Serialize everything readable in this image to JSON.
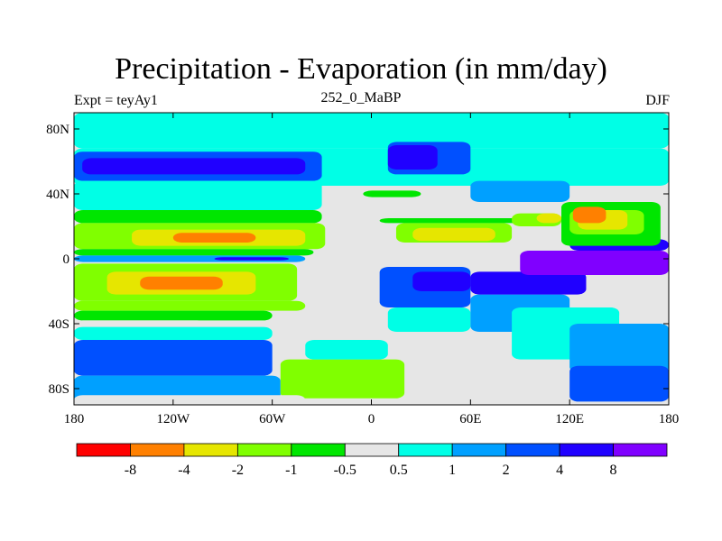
{
  "title": "Precipitation - Evaporation (in mm/day)",
  "left_label": "Expt = teyAy1",
  "center_label": "252_0_MaBP",
  "right_label": "DJF",
  "chart_data": {
    "type": "heatmap",
    "title": "Precipitation - Evaporation (in mm/day)",
    "xlabel": "",
    "ylabel": "",
    "xlim": [
      -180,
      180
    ],
    "ylim": [
      -90,
      90
    ],
    "x_ticks": [
      {
        "value": -180,
        "label": "180"
      },
      {
        "value": -120,
        "label": "120W"
      },
      {
        "value": -60,
        "label": "60W"
      },
      {
        "value": 0,
        "label": "0"
      },
      {
        "value": 60,
        "label": "60E"
      },
      {
        "value": 120,
        "label": "120E"
      },
      {
        "value": 180,
        "label": "180"
      }
    ],
    "y_ticks": [
      {
        "value": 80,
        "label": "80N"
      },
      {
        "value": 40,
        "label": "40N"
      },
      {
        "value": 0,
        "label": "0"
      },
      {
        "value": -40,
        "label": "40S"
      },
      {
        "value": -80,
        "label": "80S"
      }
    ],
    "colorbar": {
      "colors": [
        "#ff0000",
        "#ff8000",
        "#e6e600",
        "#80ff00",
        "#00e600",
        "#e6e6e6",
        "#00ffe6",
        "#00a0ff",
        "#0050ff",
        "#2000ff",
        "#8000ff"
      ],
      "labels": [
        "-8",
        "-4",
        "-2",
        "-1",
        "-0.5",
        "0.5",
        "1",
        "2",
        "4",
        "8"
      ]
    },
    "regions": [
      {
        "level": 6,
        "lon": [
          -180,
          180
        ],
        "lat": [
          68,
          90
        ]
      },
      {
        "level": 6,
        "lon": [
          -180,
          180
        ],
        "lat": [
          45,
          68
        ]
      },
      {
        "level": 8,
        "lon": [
          -180,
          -30
        ],
        "lat": [
          48,
          66
        ]
      },
      {
        "level": 9,
        "lon": [
          -175,
          -40
        ],
        "lat": [
          52,
          62
        ]
      },
      {
        "level": 6,
        "lon": [
          -180,
          -30
        ],
        "lat": [
          30,
          48
        ]
      },
      {
        "level": 4,
        "lon": [
          -180,
          -30
        ],
        "lat": [
          22,
          30
        ]
      },
      {
        "level": 3,
        "lon": [
          -180,
          -28
        ],
        "lat": [
          6,
          22
        ]
      },
      {
        "level": 2,
        "lon": [
          -145,
          -40
        ],
        "lat": [
          8,
          18
        ]
      },
      {
        "level": 1,
        "lon": [
          -120,
          -70
        ],
        "lat": [
          10,
          16
        ]
      },
      {
        "level": 4,
        "lon": [
          -180,
          -35
        ],
        "lat": [
          2,
          6
        ]
      },
      {
        "level": 7,
        "lon": [
          -180,
          -40
        ],
        "lat": [
          -2,
          2
        ]
      },
      {
        "level": 9,
        "lon": [
          -95,
          -50
        ],
        "lat": [
          -1,
          1
        ]
      },
      {
        "level": 3,
        "lon": [
          -180,
          -45
        ],
        "lat": [
          -26,
          -3
        ]
      },
      {
        "level": 2,
        "lon": [
          -160,
          -70
        ],
        "lat": [
          -22,
          -8
        ]
      },
      {
        "level": 1,
        "lon": [
          -140,
          -90
        ],
        "lat": [
          -19,
          -11
        ]
      },
      {
        "level": 3,
        "lon": [
          -180,
          -40
        ],
        "lat": [
          -32,
          -26
        ]
      },
      {
        "level": 4,
        "lon": [
          -180,
          -60
        ],
        "lat": [
          -38,
          -32
        ]
      },
      {
        "level": 5,
        "lon": [
          -180,
          -100
        ],
        "lat": [
          -42,
          -38
        ]
      },
      {
        "level": 6,
        "lon": [
          -180,
          -60
        ],
        "lat": [
          -50,
          -42
        ]
      },
      {
        "level": 8,
        "lon": [
          -180,
          -60
        ],
        "lat": [
          -72,
          -50
        ]
      },
      {
        "level": 7,
        "lon": [
          -180,
          -55
        ],
        "lat": [
          -90,
          -72
        ]
      },
      {
        "level": 3,
        "lon": [
          -55,
          20
        ],
        "lat": [
          -86,
          -62
        ]
      },
      {
        "level": 6,
        "lon": [
          -40,
          10
        ],
        "lat": [
          -62,
          -50
        ]
      },
      {
        "level": 5,
        "lon": [
          -180,
          -40
        ],
        "lat": [
          -90,
          -84
        ]
      },
      {
        "level": 8,
        "lon": [
          5,
          60
        ],
        "lat": [
          -30,
          -5
        ]
      },
      {
        "level": 9,
        "lon": [
          25,
          60
        ],
        "lat": [
          -20,
          -8
        ]
      },
      {
        "level": 6,
        "lon": [
          10,
          60
        ],
        "lat": [
          -45,
          -30
        ]
      },
      {
        "level": 7,
        "lon": [
          60,
          120
        ],
        "lat": [
          -45,
          -22
        ]
      },
      {
        "level": 6,
        "lon": [
          85,
          150
        ],
        "lat": [
          -62,
          -30
        ]
      },
      {
        "level": 7,
        "lon": [
          120,
          180
        ],
        "lat": [
          -70,
          -40
        ]
      },
      {
        "level": 8,
        "lon": [
          120,
          180
        ],
        "lat": [
          -88,
          -66
        ]
      },
      {
        "level": 9,
        "lon": [
          60,
          130
        ],
        "lat": [
          -22,
          -8
        ]
      },
      {
        "level": 10,
        "lon": [
          90,
          180
        ],
        "lat": [
          -10,
          5
        ]
      },
      {
        "level": 9,
        "lon": [
          120,
          180
        ],
        "lat": [
          5,
          12
        ]
      },
      {
        "level": 3,
        "lon": [
          15,
          85
        ],
        "lat": [
          10,
          22
        ]
      },
      {
        "level": 2,
        "lon": [
          25,
          75
        ],
        "lat": [
          11,
          19
        ]
      },
      {
        "level": 4,
        "lon": [
          5,
          95
        ],
        "lat": [
          22,
          25
        ]
      },
      {
        "level": 3,
        "lon": [
          85,
          115
        ],
        "lat": [
          20,
          28
        ]
      },
      {
        "level": 2,
        "lon": [
          100,
          115
        ],
        "lat": [
          22,
          28
        ]
      },
      {
        "level": 4,
        "lon": [
          115,
          175
        ],
        "lat": [
          8,
          35
        ]
      },
      {
        "level": 3,
        "lon": [
          120,
          165
        ],
        "lat": [
          15,
          30
        ]
      },
      {
        "level": 2,
        "lon": [
          125,
          155
        ],
        "lat": [
          18,
          30
        ]
      },
      {
        "level": 1,
        "lon": [
          122,
          142
        ],
        "lat": [
          22,
          32
        ]
      },
      {
        "level": 8,
        "lon": [
          10,
          60
        ],
        "lat": [
          52,
          72
        ]
      },
      {
        "level": 9,
        "lon": [
          10,
          40
        ],
        "lat": [
          55,
          70
        ]
      },
      {
        "level": 7,
        "lon": [
          60,
          120
        ],
        "lat": [
          35,
          48
        ]
      },
      {
        "level": 4,
        "lon": [
          -5,
          30
        ],
        "lat": [
          38,
          42
        ]
      },
      {
        "level": 6,
        "lon": [
          100,
          150
        ],
        "lat": [
          -38,
          -30
        ]
      }
    ]
  }
}
